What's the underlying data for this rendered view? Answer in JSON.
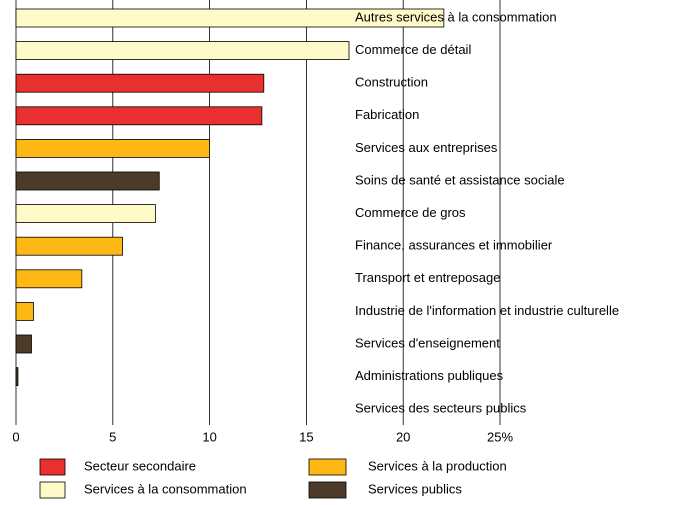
{
  "chart_data": {
    "type": "hbar",
    "categories": [
      "Autres services à la consommation",
      "Commerce de détail",
      "Construction",
      "Fabrication",
      "Services aux entreprises",
      "Soins de santé et assistance sociale",
      "Commerce de gros",
      "Finance, assurances et immobilier",
      "Transport et entreposage",
      "Industrie de l'information et industrie culturelle",
      "Services d'enseignement",
      "Administrations publiques",
      "Services des secteurs publics"
    ],
    "series": [
      {
        "name": "Secteur secondaire",
        "color": "#e8312f",
        "values": [
          null,
          null,
          12.8,
          12.7,
          null,
          null,
          null,
          null,
          null,
          null,
          null,
          null,
          null
        ]
      },
      {
        "name": "Services à la production",
        "color": "#fdb813",
        "values": [
          null,
          null,
          null,
          null,
          10.0,
          null,
          null,
          5.5,
          3.4,
          0.9,
          null,
          null,
          null
        ]
      },
      {
        "name": "Services à la consommation",
        "color": "#fffbc8",
        "values": [
          22.1,
          17.2,
          null,
          null,
          null,
          null,
          7.2,
          null,
          null,
          null,
          null,
          null,
          null
        ]
      },
      {
        "name": "Services publics",
        "color": "#4d3b2a",
        "values": [
          null,
          null,
          null,
          null,
          null,
          7.4,
          null,
          null,
          null,
          null,
          0.8,
          0.1,
          null
        ]
      }
    ],
    "xlim": [
      0,
      25
    ],
    "xticks": [
      0,
      5,
      10,
      15,
      20,
      {
        "value": 25,
        "label": "25%"
      }
    ],
    "grid": true
  }
}
